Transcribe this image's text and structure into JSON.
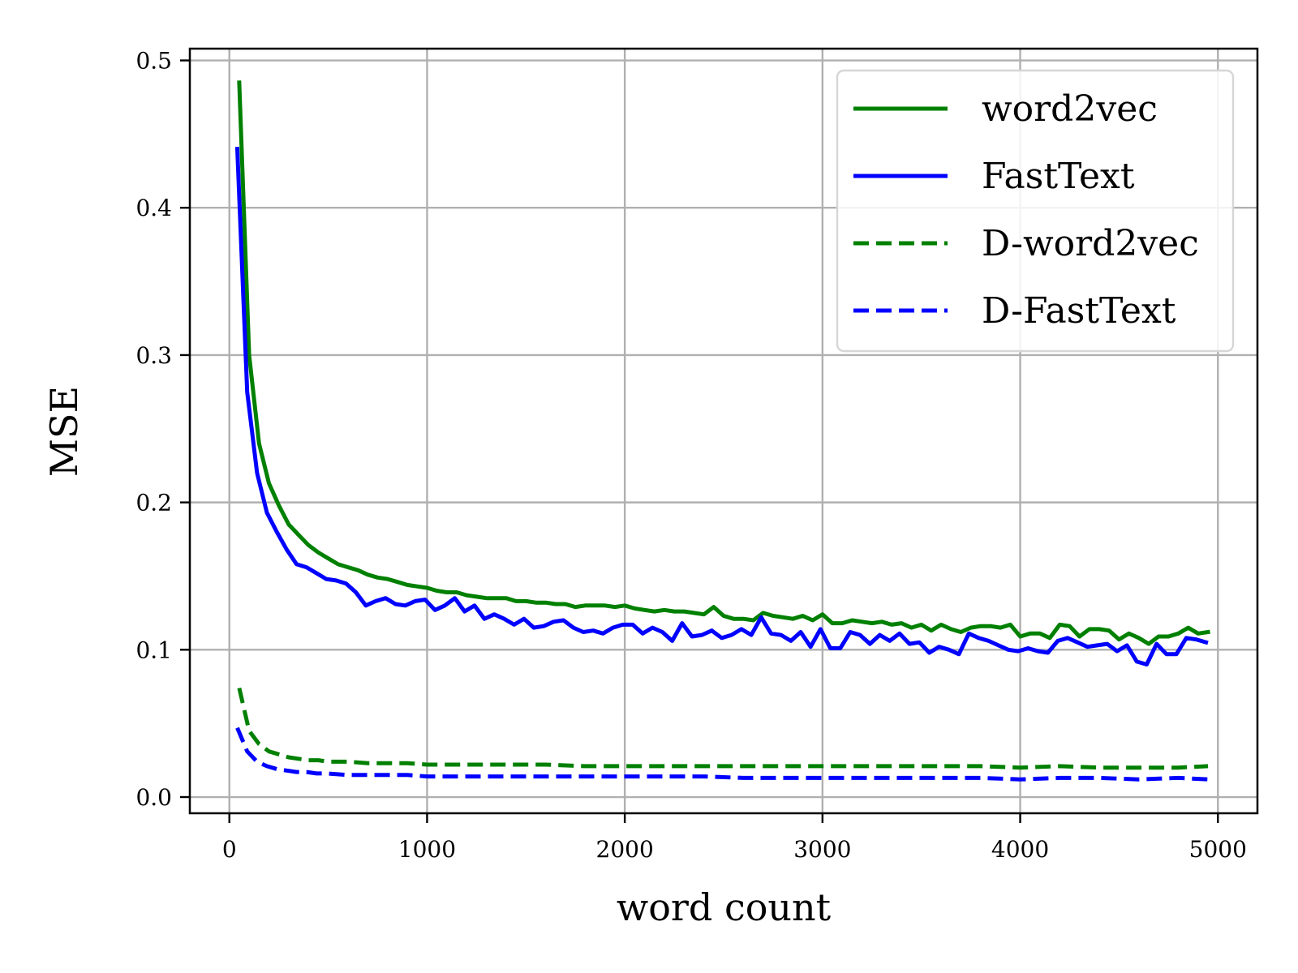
{
  "chart_data": {
    "type": "line",
    "title": "",
    "xlabel": "word count",
    "ylabel": "MSE",
    "xlim": [
      -200,
      5200
    ],
    "ylim": [
      -0.011,
      0.508
    ],
    "xticks": [
      0,
      1000,
      2000,
      3000,
      4000,
      5000
    ],
    "xtick_labels": [
      "0",
      "1000",
      "2000",
      "3000",
      "4000",
      "5000"
    ],
    "yticks": [
      0.0,
      0.1,
      0.2,
      0.3,
      0.4,
      0.5
    ],
    "ytick_labels": [
      "0.0",
      "0.1",
      "0.2",
      "0.3",
      "0.4",
      "0.5"
    ],
    "grid": true,
    "legend_position": "top-right",
    "series": [
      {
        "name": "word2vec",
        "color": "#008000",
        "dash": "solid",
        "x": [
          50,
          100,
          150,
          200,
          250,
          300,
          350,
          400,
          450,
          500,
          550,
          600,
          650,
          700,
          750,
          800,
          850,
          900,
          950,
          1000,
          1050,
          1100,
          1150,
          1200,
          1250,
          1300,
          1350,
          1400,
          1450,
          1500,
          1550,
          1600,
          1650,
          1700,
          1750,
          1800,
          1850,
          1900,
          1950,
          2000,
          2050,
          2100,
          2150,
          2200,
          2250,
          2300,
          2350,
          2400,
          2450,
          2500,
          2550,
          2600,
          2650,
          2700,
          2750,
          2800,
          2850,
          2900,
          2950,
          3000,
          3050,
          3100,
          3150,
          3200,
          3250,
          3300,
          3350,
          3400,
          3450,
          3500,
          3550,
          3600,
          3650,
          3700,
          3750,
          3800,
          3850,
          3900,
          3950,
          4000,
          4050,
          4100,
          4150,
          4200,
          4250,
          4300,
          4350,
          4400,
          4450,
          4500,
          4550,
          4600,
          4650,
          4700,
          4750,
          4800,
          4850,
          4900,
          4950
        ],
        "y": [
          0.485,
          0.3,
          0.24,
          0.213,
          0.198,
          0.185,
          0.178,
          0.171,
          0.166,
          0.162,
          0.158,
          0.156,
          0.154,
          0.151,
          0.149,
          0.148,
          0.146,
          0.144,
          0.143,
          0.142,
          0.14,
          0.139,
          0.139,
          0.137,
          0.136,
          0.135,
          0.135,
          0.135,
          0.133,
          0.133,
          0.132,
          0.132,
          0.131,
          0.131,
          0.129,
          0.13,
          0.13,
          0.13,
          0.129,
          0.13,
          0.128,
          0.127,
          0.126,
          0.127,
          0.126,
          0.126,
          0.125,
          0.124,
          0.129,
          0.123,
          0.121,
          0.121,
          0.12,
          0.125,
          0.123,
          0.122,
          0.121,
          0.123,
          0.12,
          0.124,
          0.118,
          0.118,
          0.12,
          0.119,
          0.118,
          0.119,
          0.117,
          0.118,
          0.115,
          0.117,
          0.113,
          0.117,
          0.114,
          0.112,
          0.115,
          0.116,
          0.116,
          0.115,
          0.117,
          0.109,
          0.111,
          0.111,
          0.108,
          0.117,
          0.116,
          0.109,
          0.114,
          0.114,
          0.113,
          0.107,
          0.111,
          0.108,
          0.104,
          0.109,
          0.109,
          0.111,
          0.115,
          0.111,
          0.112
        ]
      },
      {
        "name": "FastText",
        "color": "#0000ff",
        "dash": "solid",
        "x": [
          40,
          90,
          140,
          190,
          240,
          290,
          340,
          390,
          440,
          490,
          540,
          590,
          640,
          690,
          740,
          790,
          840,
          890,
          940,
          990,
          1040,
          1090,
          1140,
          1190,
          1240,
          1290,
          1340,
          1390,
          1440,
          1490,
          1540,
          1590,
          1640,
          1690,
          1740,
          1790,
          1840,
          1890,
          1940,
          1990,
          2040,
          2090,
          2140,
          2190,
          2240,
          2290,
          2340,
          2390,
          2440,
          2490,
          2540,
          2590,
          2640,
          2690,
          2740,
          2790,
          2840,
          2890,
          2940,
          2990,
          3040,
          3090,
          3140,
          3190,
          3240,
          3290,
          3340,
          3390,
          3440,
          3490,
          3540,
          3590,
          3640,
          3690,
          3740,
          3790,
          3840,
          3890,
          3940,
          3990,
          4040,
          4090,
          4140,
          4190,
          4240,
          4290,
          4340,
          4390,
          4440,
          4490,
          4540,
          4590,
          4640,
          4690,
          4740,
          4790,
          4840,
          4890,
          4940
        ],
        "y": [
          0.44,
          0.275,
          0.22,
          0.193,
          0.18,
          0.168,
          0.158,
          0.156,
          0.152,
          0.148,
          0.147,
          0.145,
          0.139,
          0.13,
          0.133,
          0.135,
          0.131,
          0.13,
          0.133,
          0.134,
          0.127,
          0.13,
          0.135,
          0.126,
          0.13,
          0.121,
          0.124,
          0.121,
          0.117,
          0.121,
          0.115,
          0.116,
          0.119,
          0.12,
          0.115,
          0.112,
          0.113,
          0.111,
          0.115,
          0.117,
          0.117,
          0.111,
          0.115,
          0.112,
          0.106,
          0.118,
          0.109,
          0.11,
          0.113,
          0.108,
          0.11,
          0.114,
          0.11,
          0.122,
          0.111,
          0.11,
          0.106,
          0.112,
          0.102,
          0.114,
          0.101,
          0.101,
          0.112,
          0.11,
          0.104,
          0.11,
          0.106,
          0.111,
          0.104,
          0.105,
          0.098,
          0.102,
          0.1,
          0.097,
          0.111,
          0.108,
          0.106,
          0.103,
          0.1,
          0.099,
          0.101,
          0.099,
          0.098,
          0.106,
          0.108,
          0.105,
          0.102,
          0.103,
          0.104,
          0.099,
          0.103,
          0.092,
          0.09,
          0.104,
          0.097,
          0.097,
          0.108,
          0.107,
          0.105
        ]
      },
      {
        "name": "D-word2vec",
        "color": "#008000",
        "dash": "dashed",
        "x": [
          50,
          100,
          150,
          200,
          250,
          300,
          350,
          400,
          450,
          500,
          600,
          700,
          800,
          900,
          1000,
          1200,
          1400,
          1600,
          1800,
          2000,
          2200,
          2400,
          2600,
          2800,
          3000,
          3200,
          3400,
          3600,
          3800,
          4000,
          4200,
          4400,
          4600,
          4800,
          4950
        ],
        "y": [
          0.074,
          0.045,
          0.036,
          0.031,
          0.029,
          0.027,
          0.026,
          0.025,
          0.025,
          0.024,
          0.024,
          0.023,
          0.023,
          0.023,
          0.022,
          0.022,
          0.022,
          0.022,
          0.021,
          0.021,
          0.021,
          0.021,
          0.021,
          0.021,
          0.021,
          0.021,
          0.021,
          0.021,
          0.021,
          0.02,
          0.021,
          0.02,
          0.02,
          0.02,
          0.021
        ]
      },
      {
        "name": "D-FastText",
        "color": "#0000ff",
        "dash": "dashed",
        "x": [
          40,
          90,
          140,
          190,
          240,
          290,
          340,
          390,
          440,
          490,
          600,
          700,
          800,
          900,
          1000,
          1200,
          1400,
          1600,
          1800,
          2000,
          2200,
          2400,
          2600,
          2800,
          3000,
          3200,
          3400,
          3600,
          3800,
          4000,
          4200,
          4400,
          4600,
          4800,
          4950
        ],
        "y": [
          0.047,
          0.031,
          0.024,
          0.021,
          0.019,
          0.018,
          0.017,
          0.017,
          0.016,
          0.016,
          0.015,
          0.015,
          0.015,
          0.015,
          0.014,
          0.014,
          0.014,
          0.014,
          0.014,
          0.014,
          0.014,
          0.014,
          0.013,
          0.013,
          0.013,
          0.013,
          0.013,
          0.013,
          0.013,
          0.012,
          0.013,
          0.013,
          0.012,
          0.013,
          0.012
        ]
      }
    ]
  }
}
